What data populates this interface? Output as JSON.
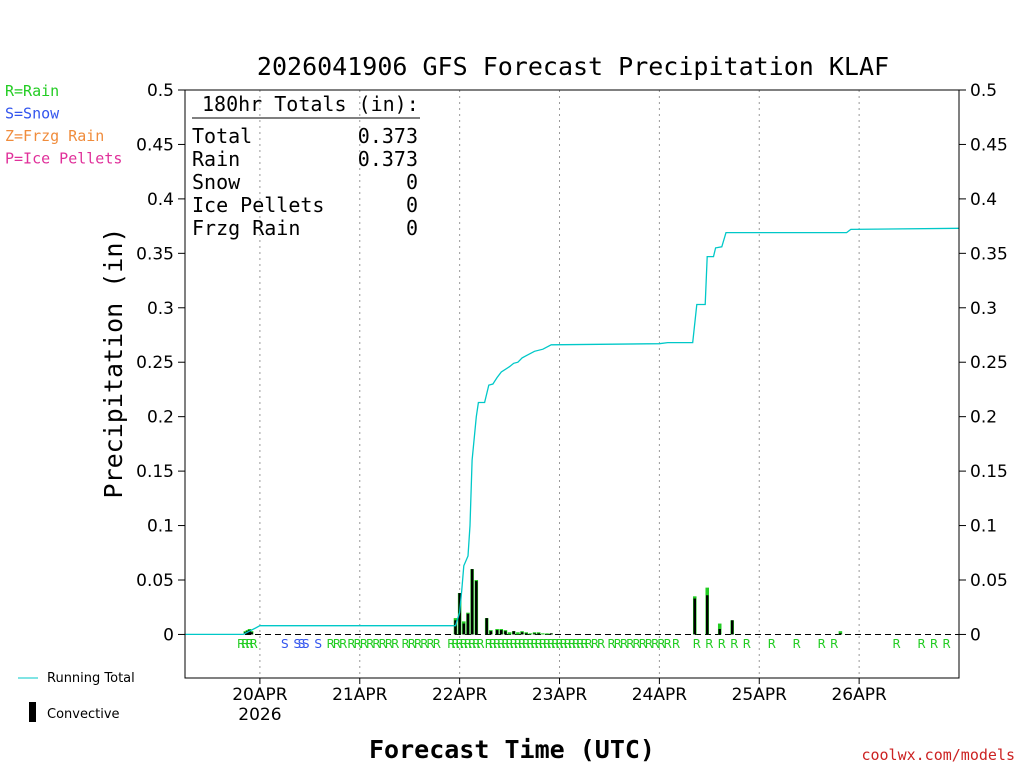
{
  "chart_data": {
    "type": "bar",
    "title": "2026041906 GFS Forecast Precipitation KLAF",
    "ylabel": "Precipitation (in)",
    "xlabel": "Forecast Time (UTC)",
    "ylim": [
      -0.04,
      0.5
    ],
    "yticks": [
      0,
      0.05,
      0.1,
      0.15,
      0.2,
      0.25,
      0.3,
      0.35,
      0.4,
      0.45,
      0.5
    ],
    "ytick_labels": [
      "0",
      "0.05",
      "0.1",
      "0.15",
      "0.2",
      "0.25",
      "0.3",
      "0.35",
      "0.4",
      "0.45",
      "0.5"
    ],
    "xlim_hours": [
      0,
      186
    ],
    "day_ticks": [
      {
        "hour": 18,
        "label": "20APR",
        "sublabel": "2026"
      },
      {
        "hour": 42,
        "label": "21APR",
        "sublabel": ""
      },
      {
        "hour": 66,
        "label": "22APR",
        "sublabel": ""
      },
      {
        "hour": 90,
        "label": "23APR",
        "sublabel": ""
      },
      {
        "hour": 114,
        "label": "24APR",
        "sublabel": ""
      },
      {
        "hour": 138,
        "label": "25APR",
        "sublabel": ""
      },
      {
        "hour": 162,
        "label": "26APR",
        "sublabel": ""
      }
    ],
    "series": [
      {
        "name": "Running Total",
        "color": "#00c8c8",
        "points": [
          [
            0,
            0
          ],
          [
            14,
            0
          ],
          [
            16,
            0.004
          ],
          [
            18,
            0.008
          ],
          [
            20,
            0.008
          ],
          [
            65,
            0.008
          ],
          [
            66,
            0.02
          ],
          [
            66.5,
            0.04
          ],
          [
            67,
            0.063
          ],
          [
            68,
            0.072
          ],
          [
            68.5,
            0.1
          ],
          [
            69,
            0.16
          ],
          [
            70,
            0.2
          ],
          [
            70.5,
            0.213
          ],
          [
            72,
            0.213
          ],
          [
            73,
            0.229
          ],
          [
            74,
            0.23
          ],
          [
            75,
            0.236
          ],
          [
            76,
            0.241
          ],
          [
            78,
            0.246
          ],
          [
            79,
            0.249
          ],
          [
            80,
            0.25
          ],
          [
            81,
            0.254
          ],
          [
            82,
            0.256
          ],
          [
            84,
            0.26
          ],
          [
            86,
            0.262
          ],
          [
            88,
            0.266
          ],
          [
            114,
            0.267
          ],
          [
            116,
            0.268
          ],
          [
            122,
            0.268
          ],
          [
            123,
            0.303
          ],
          [
            125,
            0.303
          ],
          [
            125.5,
            0.347
          ],
          [
            127,
            0.347
          ],
          [
            127.5,
            0.355
          ],
          [
            129,
            0.356
          ],
          [
            130,
            0.369
          ],
          [
            159,
            0.369
          ],
          [
            160,
            0.372
          ],
          [
            186,
            0.373
          ]
        ]
      },
      {
        "name": "Convective",
        "color": "#000000",
        "bars": [
          [
            14.5,
            0.002
          ],
          [
            15,
            0.003
          ],
          [
            15.5,
            0.004
          ],
          [
            16,
            0.002
          ],
          [
            65,
            0.013
          ],
          [
            66,
            0.038
          ],
          [
            67,
            0.01
          ],
          [
            68,
            0.019
          ],
          [
            69,
            0.06
          ],
          [
            70,
            0.049
          ],
          [
            72.5,
            0.015
          ],
          [
            73.5,
            0.003
          ],
          [
            75,
            0.004
          ],
          [
            76,
            0.004
          ],
          [
            77,
            0.003
          ],
          [
            79,
            0.003
          ],
          [
            81,
            0.002
          ],
          [
            82,
            0.001
          ],
          [
            84,
            0.001
          ],
          [
            85,
            0.001
          ],
          [
            88,
            0.001
          ],
          [
            122.5,
            0.033
          ],
          [
            125.5,
            0.036
          ],
          [
            128.5,
            0.005
          ],
          [
            131.5,
            0.013
          ],
          [
            157.5,
            0.001
          ]
        ]
      },
      {
        "name": "Rain",
        "color": "#22cc22",
        "bars": [
          [
            14.5,
            0.003
          ],
          [
            15,
            0.004
          ],
          [
            15.5,
            0.005
          ],
          [
            16,
            0.003
          ],
          [
            65,
            0.015
          ],
          [
            66,
            0.038
          ],
          [
            67,
            0.012
          ],
          [
            68,
            0.02
          ],
          [
            69,
            0.06
          ],
          [
            70,
            0.05
          ],
          [
            72.5,
            0.015
          ],
          [
            73.5,
            0.004
          ],
          [
            75,
            0.005
          ],
          [
            76,
            0.005
          ],
          [
            77,
            0.004
          ],
          [
            78,
            0.002
          ],
          [
            79,
            0.003
          ],
          [
            80,
            0.002
          ],
          [
            81,
            0.003
          ],
          [
            82,
            0.002
          ],
          [
            83,
            0.001
          ],
          [
            84,
            0.002
          ],
          [
            85,
            0.002
          ],
          [
            86,
            0.001
          ],
          [
            87,
            0.001
          ],
          [
            88,
            0.001
          ],
          [
            122.5,
            0.035
          ],
          [
            125.5,
            0.043
          ],
          [
            128.5,
            0.01
          ],
          [
            131.5,
            0.013
          ],
          [
            157.5,
            0.003
          ]
        ]
      }
    ],
    "ptype_markers": [
      {
        "hour": 13.5,
        "type": "R"
      },
      {
        "hour": 14.5,
        "type": "R"
      },
      {
        "hour": 15.5,
        "type": "R"
      },
      {
        "hour": 16.5,
        "type": "R"
      },
      {
        "hour": 24,
        "type": "S"
      },
      {
        "hour": 27,
        "type": "S"
      },
      {
        "hour": 28,
        "type": "S"
      },
      {
        "hour": 29,
        "type": "S"
      },
      {
        "hour": 32,
        "type": "S"
      },
      {
        "hour": 35,
        "type": "R"
      },
      {
        "hour": 36.5,
        "type": "R"
      },
      {
        "hour": 38,
        "type": "R"
      },
      {
        "hour": 40,
        "type": "R"
      },
      {
        "hour": 41.5,
        "type": "R"
      },
      {
        "hour": 43,
        "type": "R"
      },
      {
        "hour": 44.5,
        "type": "R"
      },
      {
        "hour": 46,
        "type": "R"
      },
      {
        "hour": 47.5,
        "type": "R"
      },
      {
        "hour": 49,
        "type": "R"
      },
      {
        "hour": 50.5,
        "type": "R"
      },
      {
        "hour": 53,
        "type": "R"
      },
      {
        "hour": 54.5,
        "type": "R"
      },
      {
        "hour": 56,
        "type": "R"
      },
      {
        "hour": 57.5,
        "type": "R"
      },
      {
        "hour": 59,
        "type": "R"
      },
      {
        "hour": 60.5,
        "type": "R"
      },
      {
        "hour": 64,
        "type": "R"
      },
      {
        "hour": 65,
        "type": "R"
      },
      {
        "hour": 66,
        "type": "R"
      },
      {
        "hour": 67,
        "type": "R"
      },
      {
        "hour": 68,
        "type": "R"
      },
      {
        "hour": 69,
        "type": "R"
      },
      {
        "hour": 70,
        "type": "R"
      },
      {
        "hour": 71,
        "type": "R"
      },
      {
        "hour": 73,
        "type": "R"
      },
      {
        "hour": 74,
        "type": "R"
      },
      {
        "hour": 75,
        "type": "R"
      },
      {
        "hour": 76,
        "type": "R"
      },
      {
        "hour": 77,
        "type": "R"
      },
      {
        "hour": 78,
        "type": "R"
      },
      {
        "hour": 79,
        "type": "R"
      },
      {
        "hour": 80,
        "type": "R"
      },
      {
        "hour": 81,
        "type": "R"
      },
      {
        "hour": 82,
        "type": "R"
      },
      {
        "hour": 83,
        "type": "R"
      },
      {
        "hour": 84,
        "type": "R"
      },
      {
        "hour": 85,
        "type": "R"
      },
      {
        "hour": 86,
        "type": "R"
      },
      {
        "hour": 87,
        "type": "R"
      },
      {
        "hour": 88,
        "type": "R"
      },
      {
        "hour": 89,
        "type": "R"
      },
      {
        "hour": 90,
        "type": "R"
      },
      {
        "hour": 91,
        "type": "R"
      },
      {
        "hour": 92,
        "type": "R"
      },
      {
        "hour": 93,
        "type": "R"
      },
      {
        "hour": 94,
        "type": "R"
      },
      {
        "hour": 95,
        "type": "R"
      },
      {
        "hour": 96,
        "type": "R"
      },
      {
        "hour": 97,
        "type": "R"
      },
      {
        "hour": 98.5,
        "type": "R"
      },
      {
        "hour": 100,
        "type": "R"
      },
      {
        "hour": 102.5,
        "type": "R"
      },
      {
        "hour": 104,
        "type": "R"
      },
      {
        "hour": 105.5,
        "type": "R"
      },
      {
        "hour": 107,
        "type": "R"
      },
      {
        "hour": 108.5,
        "type": "R"
      },
      {
        "hour": 110,
        "type": "R"
      },
      {
        "hour": 111.5,
        "type": "R"
      },
      {
        "hour": 113,
        "type": "R"
      },
      {
        "hour": 114.5,
        "type": "R"
      },
      {
        "hour": 116,
        "type": "R"
      },
      {
        "hour": 118,
        "type": "R"
      },
      {
        "hour": 123,
        "type": "R"
      },
      {
        "hour": 126,
        "type": "R"
      },
      {
        "hour": 129,
        "type": "R"
      },
      {
        "hour": 132,
        "type": "R"
      },
      {
        "hour": 135,
        "type": "R"
      },
      {
        "hour": 141,
        "type": "R"
      },
      {
        "hour": 147,
        "type": "R"
      },
      {
        "hour": 153,
        "type": "R"
      },
      {
        "hour": 156,
        "type": "R"
      },
      {
        "hour": 171,
        "type": "R"
      },
      {
        "hour": 177,
        "type": "R"
      },
      {
        "hour": 180,
        "type": "R"
      },
      {
        "hour": 183,
        "type": "R"
      }
    ]
  },
  "totals": {
    "header": "180hr Totals (in):",
    "rows": [
      {
        "label": "Total",
        "value": "0.373"
      },
      {
        "label": "Rain",
        "value": "0.373"
      },
      {
        "label": "Snow",
        "value": "0"
      },
      {
        "label": "Ice Pellets",
        "value": "0"
      },
      {
        "label": "Frzg Rain",
        "value": "0"
      }
    ]
  },
  "ptype_legend": [
    {
      "text": "R=Rain",
      "color": "#22cc22"
    },
    {
      "text": "S=Snow",
      "color": "#3355ee"
    },
    {
      "text": "Z=Frzg Rain",
      "color": "#f08c3c"
    },
    {
      "text": "P=Ice Pellets",
      "color": "#e0309a"
    }
  ],
  "series_legend": {
    "running_total": "Running Total",
    "convective": "Convective"
  },
  "marker_colors": {
    "R": "#22cc22",
    "S": "#3355ee",
    "Z": "#f08c3c",
    "P": "#e0309a"
  },
  "credit": "coolwx.com/models"
}
